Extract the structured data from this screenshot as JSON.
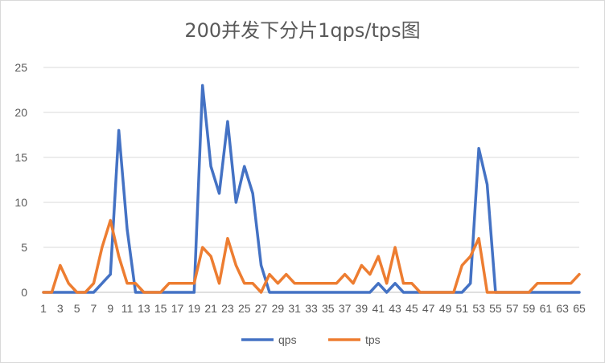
{
  "chart_data": {
    "type": "line",
    "title": "200并发下分片1qps/tps图",
    "xlabel": "",
    "ylabel": "",
    "ylim": [
      0,
      25
    ],
    "yticks": [
      0,
      5,
      10,
      15,
      20,
      25
    ],
    "xtick_labels": [
      "1",
      "3",
      "5",
      "7",
      "9",
      "11",
      "13",
      "15",
      "17",
      "19",
      "21",
      "23",
      "25",
      "27",
      "29",
      "31",
      "33",
      "35",
      "37",
      "39",
      "41",
      "43",
      "45",
      "47",
      "49",
      "51",
      "53",
      "55",
      "57",
      "59",
      "61",
      "63",
      "65"
    ],
    "x": [
      1,
      2,
      3,
      4,
      5,
      6,
      7,
      8,
      9,
      10,
      11,
      12,
      13,
      14,
      15,
      16,
      17,
      18,
      19,
      20,
      21,
      22,
      23,
      24,
      25,
      26,
      27,
      28,
      29,
      30,
      31,
      32,
      33,
      34,
      35,
      36,
      37,
      38,
      39,
      40,
      41,
      42,
      43,
      44,
      45,
      46,
      47,
      48,
      49,
      50,
      51,
      52,
      53,
      54,
      55,
      56,
      57,
      58,
      59,
      60,
      61,
      62,
      63,
      64,
      65
    ],
    "grid": true,
    "legend_position": "bottom",
    "series": [
      {
        "name": "qps",
        "color": "#4472c4",
        "values": [
          0,
          0,
          0,
          0,
          0,
          0,
          0,
          1,
          2,
          18,
          7,
          0,
          0,
          0,
          0,
          0,
          0,
          0,
          0,
          23,
          14,
          11,
          19,
          10,
          14,
          11,
          3,
          0,
          0,
          0,
          0,
          0,
          0,
          0,
          0,
          0,
          0,
          0,
          0,
          0,
          1,
          0,
          1,
          0,
          0,
          0,
          0,
          0,
          0,
          0,
          0,
          1,
          16,
          12,
          0,
          0,
          0,
          0,
          0,
          0,
          0,
          0,
          0,
          0,
          0
        ]
      },
      {
        "name": "tps",
        "color": "#ed7d31",
        "values": [
          0,
          0,
          3,
          1,
          0,
          0,
          1,
          5,
          8,
          4,
          1,
          1,
          0,
          0,
          0,
          1,
          1,
          1,
          1,
          5,
          4,
          1,
          6,
          3,
          1,
          1,
          0,
          2,
          1,
          2,
          1,
          1,
          1,
          1,
          1,
          1,
          2,
          1,
          3,
          2,
          4,
          1,
          5,
          1,
          1,
          0,
          0,
          0,
          0,
          0,
          3,
          4,
          6,
          0,
          0,
          0,
          0,
          0,
          0,
          1,
          1,
          1,
          1,
          1,
          2
        ]
      }
    ]
  }
}
